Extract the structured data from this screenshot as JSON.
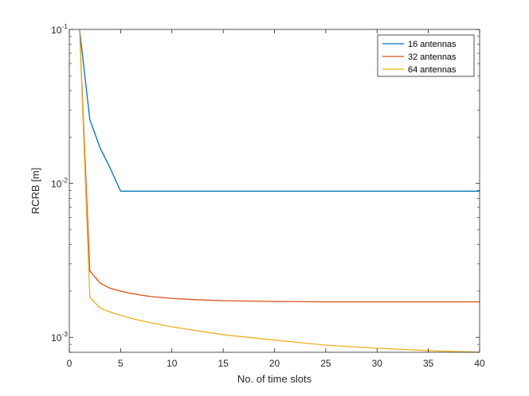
{
  "chart_data": {
    "type": "line",
    "title": "",
    "xlabel": "No. of time slots",
    "ylabel": "RCRB [m]",
    "xlim": [
      0,
      40
    ],
    "ylim": [
      0.0008,
      0.1
    ],
    "yscale": "log",
    "xticks": [
      0,
      5,
      10,
      15,
      20,
      25,
      30,
      35,
      40
    ],
    "xtick_labels": [
      "0",
      "5",
      "10",
      "15",
      "20",
      "25",
      "30",
      "35",
      "40"
    ],
    "yticks": [
      {
        "value": 0.001,
        "base": "10",
        "exp": "-3"
      },
      {
        "value": 0.01,
        "base": "10",
        "exp": "-2"
      },
      {
        "value": 0.1,
        "base": "10",
        "exp": "-1"
      }
    ],
    "grid": false,
    "legend_position": "top-right",
    "series": [
      {
        "name": "16 antennas",
        "color": "#0072BD",
        "x": [
          1,
          2,
          3,
          4,
          5,
          10,
          15,
          20,
          25,
          30,
          35,
          40
        ],
        "y": [
          0.1,
          0.026,
          0.017,
          0.0125,
          0.0089,
          0.0089,
          0.0089,
          0.0089,
          0.0089,
          0.0089,
          0.0089,
          0.0089
        ]
      },
      {
        "name": "32 antennas",
        "color": "#D95319",
        "x": [
          1,
          2,
          3,
          4,
          5,
          6,
          7,
          8,
          10,
          12,
          15,
          20,
          25,
          30,
          35,
          40
        ],
        "y": [
          0.1,
          0.0027,
          0.00225,
          0.00208,
          0.002,
          0.00193,
          0.00188,
          0.00184,
          0.00179,
          0.00176,
          0.00173,
          0.00171,
          0.0017,
          0.0017,
          0.0017,
          0.0017
        ]
      },
      {
        "name": "64 antennas",
        "color": "#EDB120",
        "x": [
          1,
          2,
          3,
          4,
          5,
          6,
          8,
          10,
          15,
          20,
          25,
          30,
          35,
          40
        ],
        "y": [
          0.1,
          0.00182,
          0.00155,
          0.00146,
          0.00139,
          0.00133,
          0.00124,
          0.00117,
          0.00104,
          0.00096,
          0.00089,
          0.00085,
          0.00082,
          0.0008
        ]
      }
    ]
  }
}
